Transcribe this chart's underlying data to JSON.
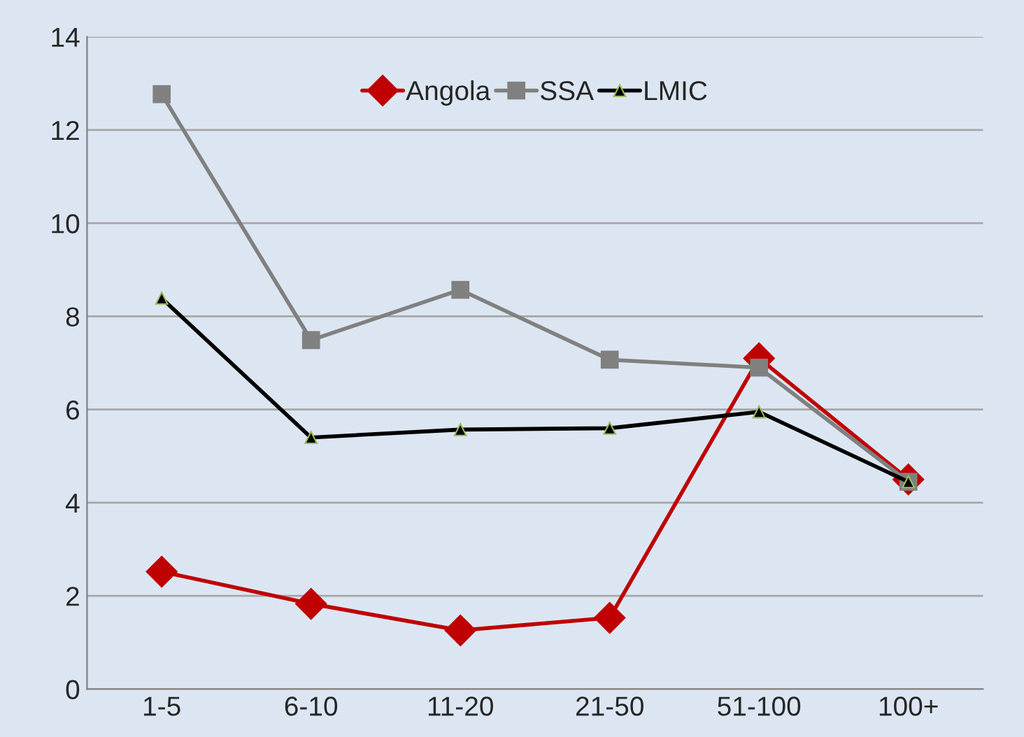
{
  "chart_data": {
    "type": "line",
    "categories": [
      "1-5",
      "6-10",
      "11-20",
      "21-50",
      "51-100",
      "100+"
    ],
    "series": [
      {
        "name": "Angola",
        "color": "#c00000",
        "marker": "diamond",
        "values": [
          2.52,
          1.83,
          1.26,
          1.53,
          7.1,
          4.5
        ]
      },
      {
        "name": "SSA",
        "color": "#808080",
        "marker": "square",
        "values": [
          12.77,
          7.49,
          8.57,
          7.07,
          6.9,
          4.45
        ]
      },
      {
        "name": "LMIC",
        "color": "#000000",
        "marker": "triangle",
        "values": [
          8.39,
          5.4,
          5.57,
          5.6,
          5.95,
          4.45
        ]
      }
    ],
    "ylim": [
      0,
      14
    ],
    "yticks": [
      0,
      2,
      4,
      6,
      8,
      10,
      12,
      14
    ],
    "grid": "y",
    "legend": "top",
    "line_style": "solid"
  }
}
